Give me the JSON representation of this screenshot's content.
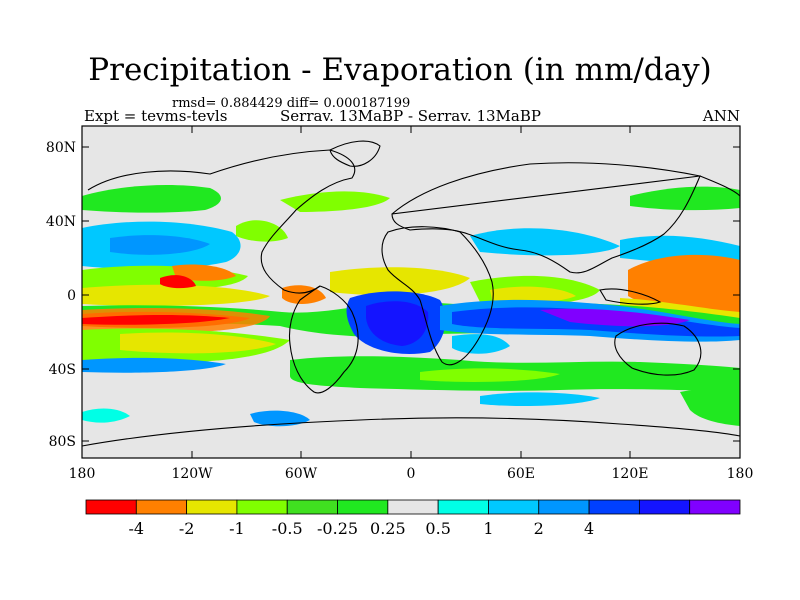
{
  "title": "Precipitation - Evaporation (in mm/day)",
  "stats": "rmsd= 0.884429 diff= 0.000187199",
  "experiment": "Expt = tevms-tevls",
  "case": "Serrav.  13MaBP - Serrav.  13MaBP",
  "period": "ANN",
  "lat_ticks": [
    "80N",
    "40N",
    "0",
    "40S",
    "80S"
  ],
  "lon_ticks": [
    "180",
    "120W",
    "60W",
    "0",
    "60E",
    "120E",
    "180"
  ],
  "colorbar": {
    "colors": [
      "#ff0000",
      "#ff8000",
      "#e6e600",
      "#80ff00",
      "#40e020",
      "#20e820",
      "#e6e6e6",
      "#00ffe6",
      "#00c8ff",
      "#0096ff",
      "#0040ff",
      "#1414ff",
      "#8000ff"
    ],
    "labels": [
      "-4",
      "-2",
      "-1",
      "-0.5",
      "-0.25",
      "0.25",
      "0.5",
      "1",
      "2",
      "4"
    ]
  },
  "colors": {
    "background_field": "#e6e6e6",
    "coast": "#000000"
  }
}
